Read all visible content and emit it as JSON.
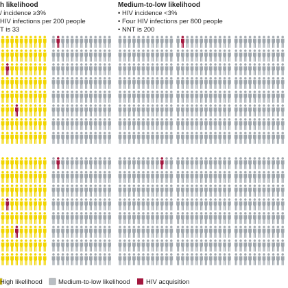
{
  "panels": [
    {
      "heading": "h likelihood",
      "bullets": [
        "/ incidence ≥3%",
        "HIV infections per 200 people",
        "T is 33"
      ]
    },
    {
      "heading": "Medium-to-low likelihood",
      "bullets": [
        "• HIV incidence <3%",
        "• Four HIV infections per 800 people",
        "• NNT is 200"
      ]
    }
  ],
  "legend": [
    "High likelihood",
    "Medium-to-low likelihood",
    "HIV acquisition"
  ]
}
